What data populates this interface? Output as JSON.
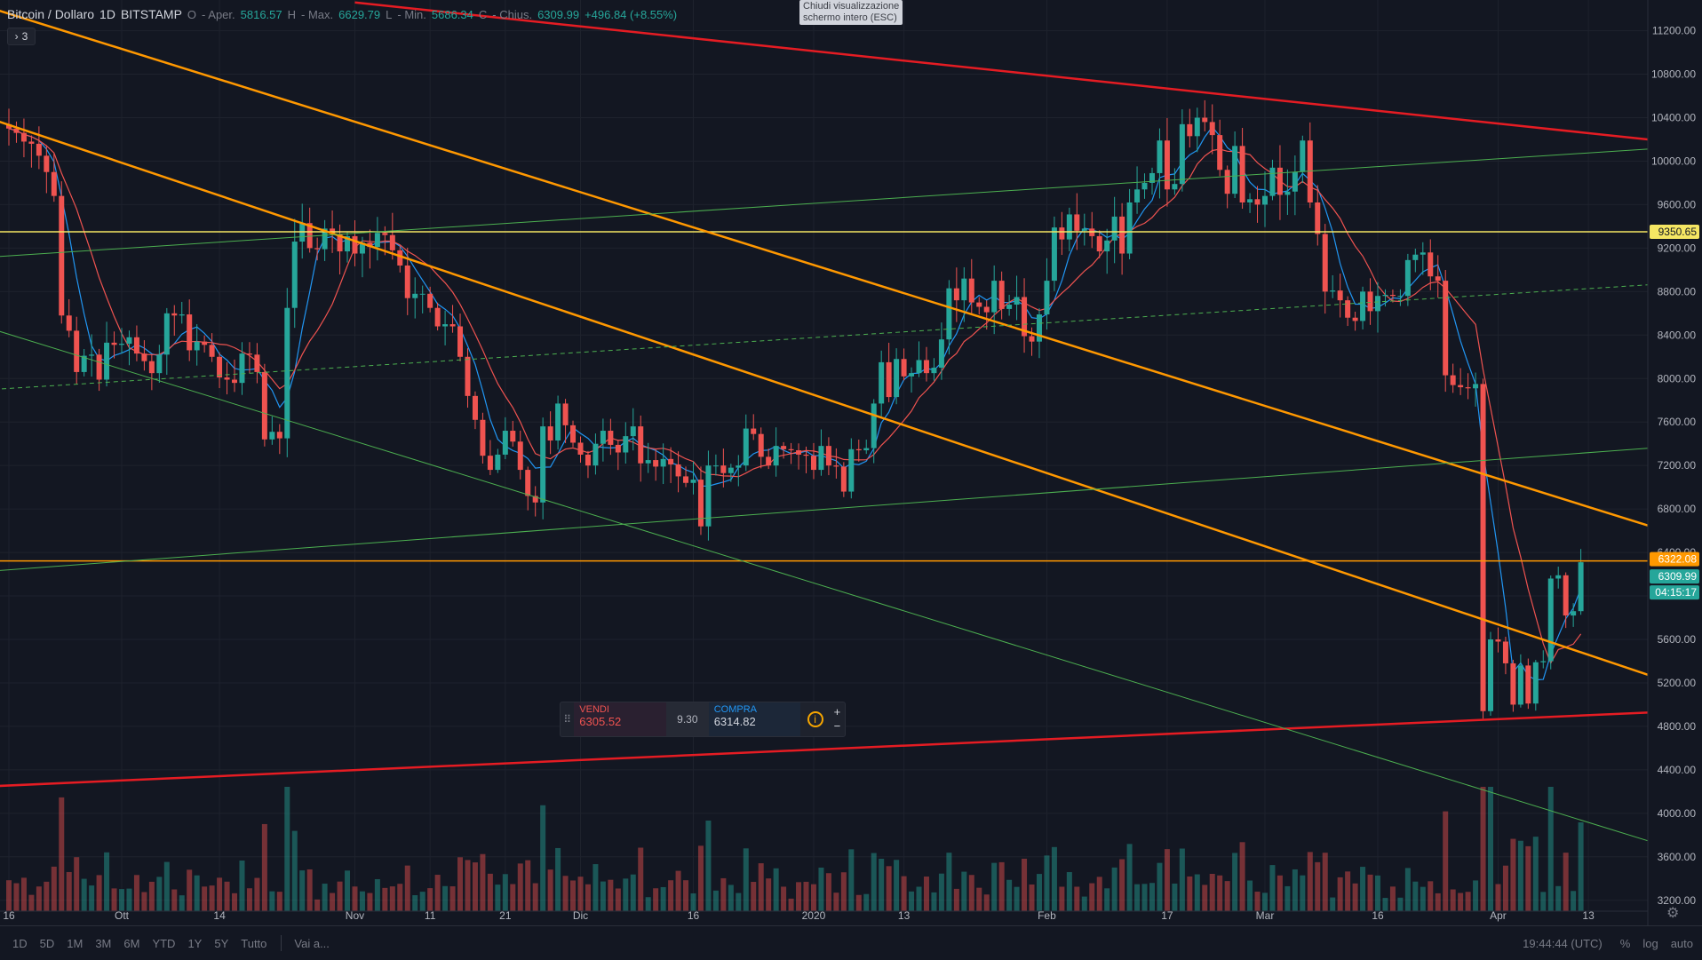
{
  "header": {
    "symbol": "Bitcoin / Dollaro",
    "interval": "1D",
    "exchange": "BITSTAMP",
    "open_label": "O",
    "open_name": "- Aper.",
    "open_value": "5816.57",
    "high_label": "H",
    "high_name": "- Max.",
    "high_value": "6629.79",
    "low_label": "L",
    "low_name": "- Min.",
    "low_value": "5686.34",
    "close_label": "C",
    "close_name": "- Chius.",
    "close_value": "6309.99",
    "change": "+496.84 (+8.55%)"
  },
  "indicator_badge": {
    "count": "3"
  },
  "fullscreen_tooltip": {
    "line1": "Chiudi visualizzazione",
    "line2": "schermo intero (ESC)"
  },
  "trade_panel": {
    "sell_label": "VENDI",
    "sell_price": "6305.52",
    "spread": "9.30",
    "buy_label": "COMPRA",
    "buy_price": "6314.82",
    "info_icon": "i",
    "plus": "+",
    "minus": "−"
  },
  "price_labels": {
    "yellow_line": "9350.65",
    "orange_line": "6322.08",
    "last_price": "6309.99",
    "countdown": "04:15:17"
  },
  "colors": {
    "background": "#131722",
    "up": "#26a69a",
    "down": "#ef5350",
    "ma_fast": "#2196f3",
    "ma_slow": "#ef5350",
    "trend_red": "#e51c23",
    "trend_orange": "#ff9800",
    "trend_green": "#4caf50",
    "horizontal_yellow": "#f5e663"
  },
  "bottom_bar": {
    "ranges": [
      "1D",
      "5D",
      "1M",
      "3M",
      "6M",
      "YTD",
      "1Y",
      "5Y",
      "Tutto"
    ],
    "goto": "Vai a...",
    "clock": "19:44:44 (UTC)",
    "percent": "%",
    "log": "log",
    "auto": "auto"
  },
  "chart_data": {
    "type": "candlestick",
    "title": "Bitcoin / Dollaro",
    "x_axis_ticks": [
      {
        "date": "2019-09-16",
        "label": "16"
      },
      {
        "date": "2019-10-01",
        "label": "Ott"
      },
      {
        "date": "2019-10-14",
        "label": "14"
      },
      {
        "date": "2019-11-01",
        "label": "Nov"
      },
      {
        "date": "2019-11-11",
        "label": "11"
      },
      {
        "date": "2019-11-21",
        "label": "21"
      },
      {
        "date": "2019-12-01",
        "label": "Dic"
      },
      {
        "date": "2019-12-16",
        "label": "16"
      },
      {
        "date": "2020-01-01",
        "label": "2020"
      },
      {
        "date": "2020-01-13",
        "label": "13"
      },
      {
        "date": "2020-02-01",
        "label": "Feb"
      },
      {
        "date": "2020-02-17",
        "label": "17"
      },
      {
        "date": "2020-03-01",
        "label": "Mar"
      },
      {
        "date": "2020-03-16",
        "label": "16"
      },
      {
        "date": "2020-04-01",
        "label": "Apr"
      },
      {
        "date": "2020-04-13",
        "label": "13"
      }
    ],
    "y_axis_ticks": [
      3200,
      3600,
      4000,
      4400,
      4800,
      5200,
      5600,
      6000,
      6400,
      6800,
      7200,
      7600,
      8000,
      8400,
      8800,
      9200,
      9600,
      10000,
      10400,
      10800,
      11200
    ],
    "ylim": [
      3100,
      11450
    ],
    "ohlc_daily": {
      "start_date": "2019-09-15",
      "closes": [
        10340,
        10300,
        10260,
        10180,
        10160,
        10050,
        9900,
        9680,
        8580,
        8440,
        8060,
        8210,
        8220,
        7990,
        8330,
        8310,
        8320,
        8380,
        8230,
        8160,
        8050,
        8220,
        8600,
        8580,
        8590,
        8260,
        8340,
        8310,
        8200,
        8010,
        7990,
        7960,
        8230,
        8220,
        8060,
        7440,
        7510,
        7450,
        8650,
        9260,
        9430,
        9200,
        9190,
        9380,
        9330,
        9170,
        9310,
        9150,
        9250,
        9210,
        9340,
        9320,
        9180,
        9040,
        8740,
        8780,
        8780,
        8650,
        8480,
        8500,
        8480,
        8200,
        7840,
        7620,
        7290,
        7160,
        7300,
        7520,
        7420,
        7160,
        6920,
        6860,
        7560,
        7430,
        7770,
        7570,
        7410,
        7300,
        7200,
        7400,
        7520,
        7390,
        7320,
        7470,
        7560,
        7220,
        7250,
        7190,
        7260,
        7210,
        7100,
        7040,
        7070,
        6640,
        7200,
        7200,
        7130,
        7180,
        7200,
        7540,
        7490,
        7280,
        7200,
        7380,
        7350,
        7340,
        7300,
        7290,
        7160,
        7380,
        7200,
        7190,
        6960,
        7350,
        7340,
        7360,
        7770,
        8150,
        7830,
        8180,
        8020,
        8050,
        8170,
        8050,
        8100,
        8360,
        8830,
        8720,
        8920,
        8700,
        8660,
        8610,
        8900,
        8640,
        8680,
        8750,
        8390,
        8340,
        8590,
        8900,
        9390,
        9280,
        9510,
        9360,
        9380,
        9310,
        9170,
        9270,
        9490,
        9150,
        9620,
        9740,
        9800,
        9890,
        10190,
        9740,
        9790,
        10340,
        10230,
        10400,
        10360,
        10240,
        9920,
        9700,
        10140,
        9620,
        9650,
        9600,
        9680,
        9940,
        9690,
        9720,
        9900,
        10190,
        9620,
        9330,
        8800,
        8810,
        8720,
        8560,
        8530,
        8800,
        8620,
        8760,
        8770,
        8760,
        8760,
        9090,
        9140,
        9160,
        8940,
        8900,
        8030,
        7940,
        7920,
        7910,
        7950,
        4940,
        5600,
        5580,
        5380,
        5000,
        5360,
        5010,
        5390,
        5400,
        6160,
        6190,
        5820,
        5860,
        6310
      ],
      "high_low_note": "wicks approx 1-3% beyond body"
    },
    "volume": "shown as colored bars at bottom (relative only)",
    "ma_series": [
      {
        "name": "MA fast",
        "color": "#2196f3"
      },
      {
        "name": "MA slow",
        "color": "#ef5350"
      }
    ],
    "horizontal_lines": [
      {
        "price": 9350.65,
        "color": "#f5e663"
      },
      {
        "price": 6322.08,
        "color": "#ff9800"
      }
    ],
    "trendlines": [
      {
        "color": "#e51c23",
        "from": {
          "date": "2019-11-01",
          "price": 11460
        },
        "to": {
          "date": "2020-04-25",
          "price": 10170
        }
      },
      {
        "color": "#e51c23",
        "from": {
          "date": "2019-09-14",
          "price": 4250
        },
        "to": {
          "date": "2020-04-25",
          "price": 4940
        }
      },
      {
        "color": "#ff9800",
        "from": {
          "date": "2019-09-14",
          "price": 10380
        },
        "to": {
          "date": "2020-04-25",
          "price": 5180
        }
      },
      {
        "color": "#ff9800",
        "from": {
          "date": "2019-09-14",
          "price": 11400
        },
        "to": {
          "date": "2020-04-25",
          "price": 6560
        }
      },
      {
        "color": "#4caf50",
        "from": {
          "date": "2019-09-14",
          "price": 9120
        },
        "to": {
          "date": "2020-04-25",
          "price": 10130
        }
      },
      {
        "color": "#4caf50",
        "from": {
          "date": "2019-09-14",
          "price": 6230
        },
        "to": {
          "date": "2020-04-25",
          "price": 7380
        }
      },
      {
        "color": "#4caf50",
        "from": {
          "date": "2019-09-14",
          "price": 8450
        },
        "to": {
          "date": "2020-04-25",
          "price": 3660
        }
      },
      {
        "color": "#4caf50",
        "dashed": true,
        "from": {
          "date": "2019-09-14",
          "price": 7900
        },
        "to": {
          "date": "2020-04-25",
          "price": 8880
        }
      }
    ]
  }
}
